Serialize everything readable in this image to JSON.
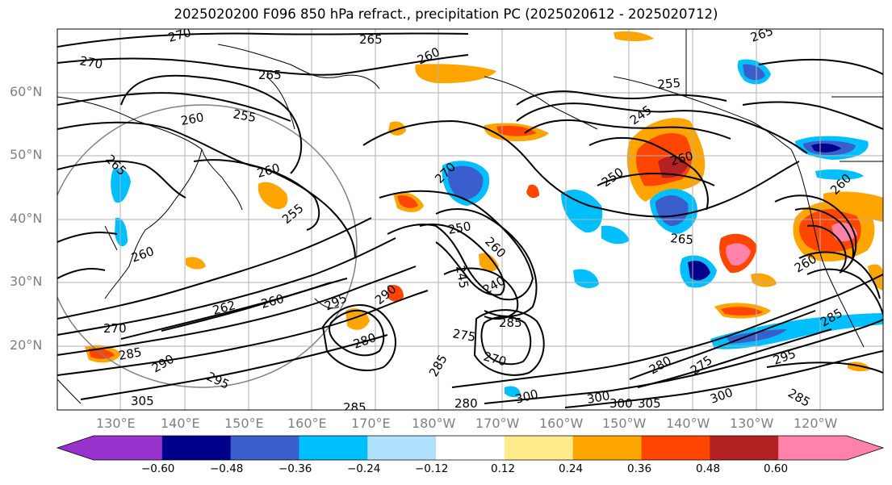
{
  "title": "2025020200 F096 850 hPa refract., precipitation PC (2025020612 - 2025020712)",
  "map": {
    "lat_labels": [
      "60°N",
      "50°N",
      "40°N",
      "30°N",
      "20°N"
    ],
    "lon_labels": [
      "130°E",
      "140°E",
      "150°E",
      "160°E",
      "170°E",
      "180°W",
      "170°W",
      "160°W",
      "150°W",
      "140°W",
      "130°W",
      "120°W"
    ],
    "contour_labels": [
      "270",
      "270",
      "265",
      "265",
      "260",
      "255",
      "260",
      "265",
      "260",
      "255",
      "260",
      "270",
      "250",
      "260",
      "245",
      "240",
      "262",
      "260",
      "270",
      "295",
      "290",
      "285",
      "275",
      "285",
      "280",
      "270",
      "280",
      "300",
      "295",
      "285",
      "305",
      "285",
      "300",
      "280",
      "290",
      "255",
      "245",
      "250",
      "260",
      "265",
      "260",
      "260",
      "285",
      "275",
      "295",
      "300",
      "285",
      "300",
      "305",
      "265"
    ],
    "coastline_color": "#000000",
    "grid_color": "#b0b0b0"
  },
  "colorbar": {
    "ticks": [
      "−0.60",
      "−0.48",
      "−0.36",
      "−0.24",
      "−0.12",
      "0.12",
      "0.24",
      "0.36",
      "0.48",
      "0.60"
    ],
    "colors": [
      "#9932cc",
      "#00008b",
      "#3a5fcd",
      "#00bfff",
      "#b0e2ff",
      "#ffffff",
      "#ffec8b",
      "#ffa500",
      "#ff4500",
      "#b22222",
      "#ff82ab"
    ]
  }
}
